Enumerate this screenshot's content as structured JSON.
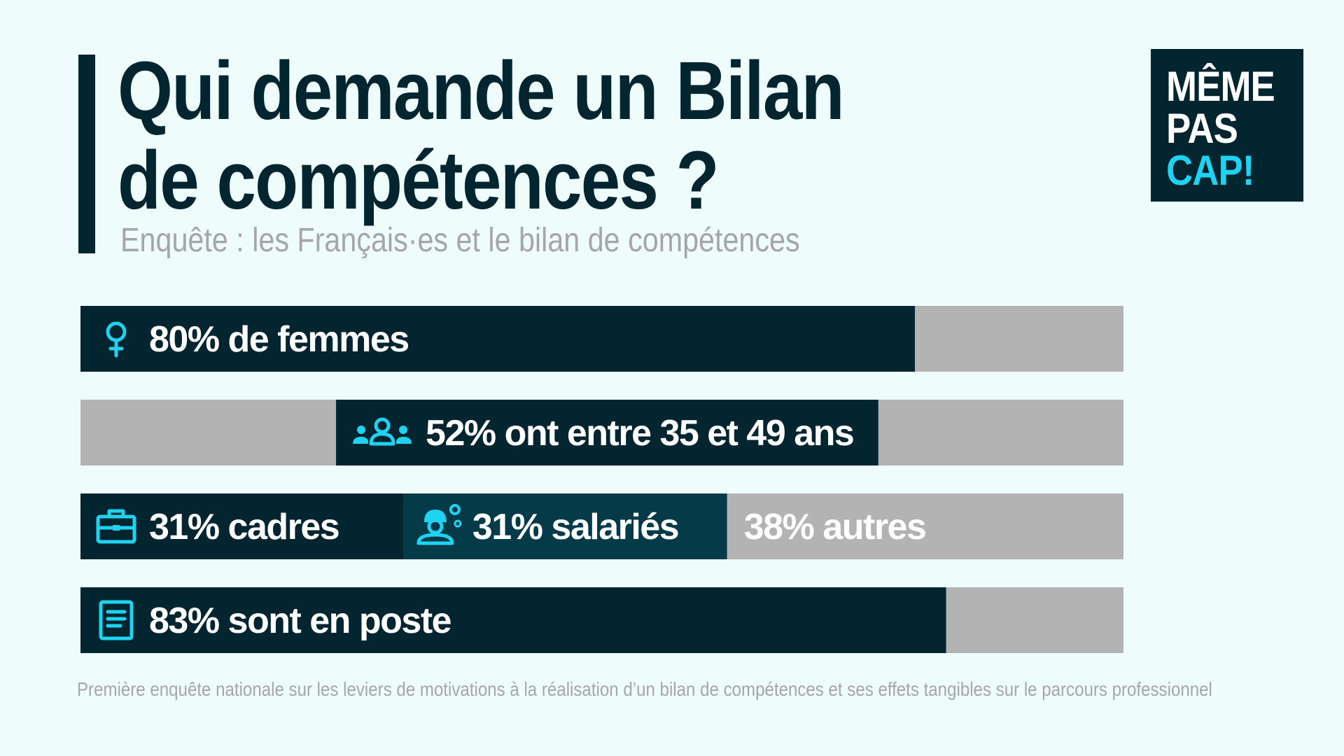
{
  "header": {
    "title_line1": "Qui demande un Bilan",
    "title_line2": "de compétences ?",
    "subtitle": "Enquête : les Français·es et le bilan de compétences"
  },
  "logo": {
    "line1": "MÊME",
    "line2": "PAS",
    "line3": "CAP!"
  },
  "colors": {
    "dark": "#032530",
    "dark_alt": "#053a48",
    "gray": "#b3b3b3",
    "accent": "#1ed2f0",
    "background": "#eefcfc"
  },
  "chart_data": {
    "type": "bar",
    "orientation": "horizontal-stacked",
    "rows": [
      {
        "segments": [
          {
            "label": "80% de femmes",
            "value": 80,
            "color": "dark",
            "icon": "female-icon"
          },
          {
            "label": "",
            "value": 20,
            "color": "gray"
          }
        ]
      },
      {
        "segments": [
          {
            "label": "",
            "value": 24.5,
            "color": "gray"
          },
          {
            "label": "52% ont entre 35 et 49 ans",
            "value": 52,
            "color": "dark",
            "icon": "group-icon"
          },
          {
            "label": "",
            "value": 23.5,
            "color": "gray"
          }
        ]
      },
      {
        "segments": [
          {
            "label": "31% cadres",
            "value": 31,
            "color": "dark",
            "icon": "briefcase-icon"
          },
          {
            "label": "31% salariés",
            "value": 31,
            "color": "dark_alt",
            "icon": "worker-gears-icon"
          },
          {
            "label": "38% autres",
            "value": 38,
            "color": "gray"
          }
        ]
      },
      {
        "segments": [
          {
            "label": "83% sont en poste",
            "value": 83,
            "color": "dark",
            "icon": "document-icon"
          },
          {
            "label": "",
            "value": 17,
            "color": "gray"
          }
        ]
      }
    ]
  },
  "footer": {
    "note": "Première enquête nationale sur les leviers de motivations à la réalisation d’un bilan de compétences et ses effets tangibles sur le parcours professionnel"
  }
}
